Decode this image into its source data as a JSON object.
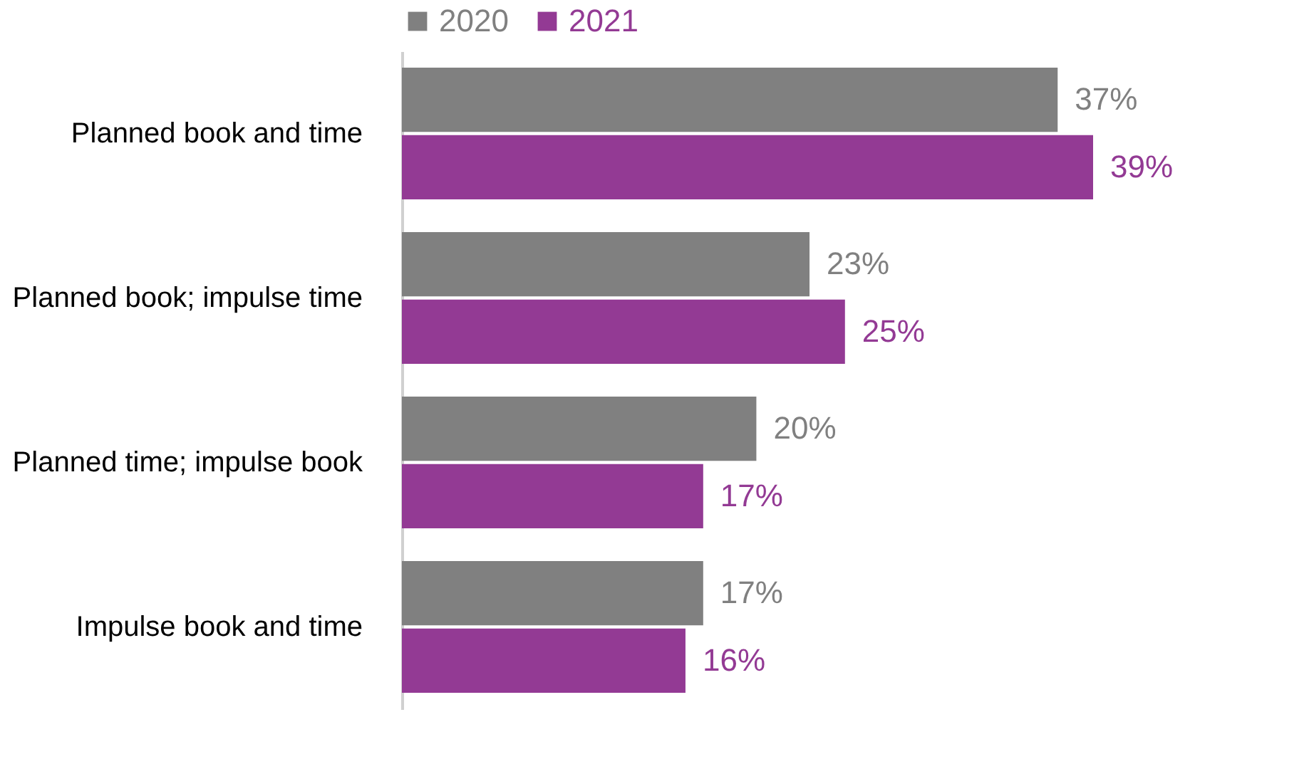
{
  "chart_data": {
    "type": "bar",
    "orientation": "horizontal",
    "categories": [
      "Planned book and time",
      "Planned book; impulse time",
      "Planned time; impulse book",
      "Impulse book and time"
    ],
    "series": [
      {
        "name": "2020",
        "color": "#808080",
        "values": [
          37,
          23,
          20,
          17
        ],
        "value_labels": [
          "37%",
          "23%",
          "20%",
          "17%"
        ]
      },
      {
        "name": "2021",
        "color": "#933a94",
        "values": [
          39,
          25,
          17,
          16
        ],
        "value_labels": [
          "39%",
          "25%",
          "17%",
          "16%"
        ]
      }
    ],
    "legend": "top",
    "grid": false
  }
}
